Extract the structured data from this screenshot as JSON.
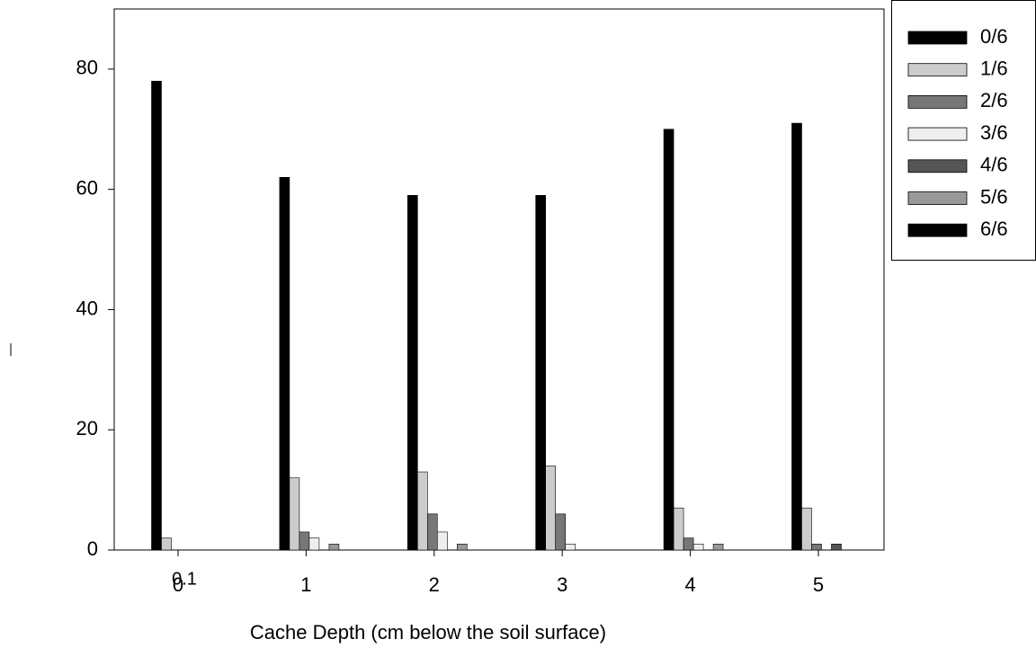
{
  "chart_data": {
    "type": "bar",
    "x_label": "Cache Depth (cm below the soil surface)",
    "categories": [
      "0",
      "1",
      "2",
      "3",
      "4",
      "5"
    ],
    "annotation": "0.1",
    "series": [
      {
        "name": "0/6",
        "color": "#000000",
        "values": [
          78,
          62,
          59,
          59,
          70,
          71
        ]
      },
      {
        "name": "1/6",
        "color": "#cccccc",
        "values": [
          2,
          12,
          13,
          14,
          7,
          7
        ]
      },
      {
        "name": "2/6",
        "color": "#777777",
        "values": [
          0,
          3,
          6,
          6,
          2,
          1
        ]
      },
      {
        "name": "3/6",
        "color": "#eeeeee",
        "values": [
          0,
          2,
          3,
          1,
          1,
          0
        ]
      },
      {
        "name": "4/6",
        "color": "#555555",
        "values": [
          0,
          0,
          0,
          0,
          0,
          1
        ]
      },
      {
        "name": "5/6",
        "color": "#999999",
        "values": [
          0,
          1,
          1,
          0,
          1,
          0
        ]
      },
      {
        "name": "6/6",
        "color": "#000000",
        "values": [
          0,
          0,
          0,
          0,
          0,
          0
        ]
      }
    ],
    "ylim": [
      0,
      90
    ],
    "yticks": [
      0,
      20,
      40,
      60,
      80
    ],
    "legend": "right",
    "grid": false
  }
}
